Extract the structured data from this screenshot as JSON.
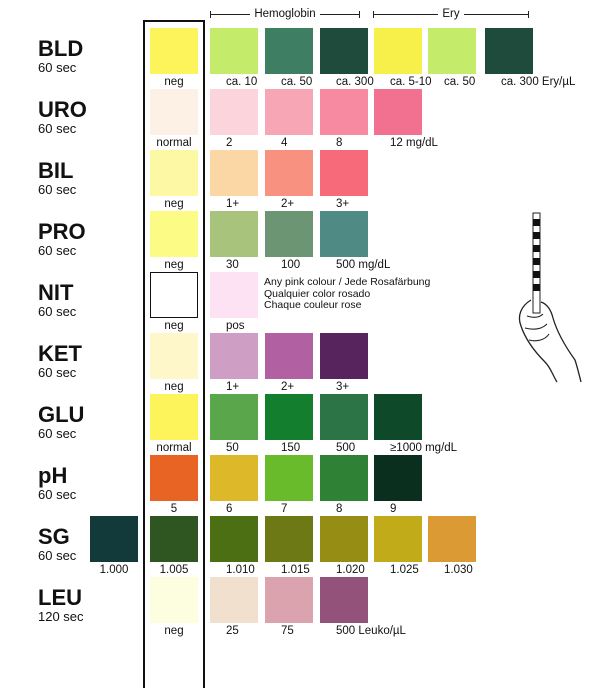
{
  "headers": {
    "hemoglobin": "Hemoglobin",
    "ery": "Ery"
  },
  "tests": [
    {
      "name": "BLD",
      "time": "60 sec",
      "swatches": [
        {
          "color": "#fdf35a",
          "label": "neg",
          "slot": 0
        },
        {
          "color": "#c4ec6a",
          "label": "ca. 10",
          "slot": 1
        },
        {
          "color": "#3e7f63",
          "label": "ca. 50",
          "slot": 2
        },
        {
          "color": "#1f4b3d",
          "label": "ca. 300",
          "slot": 3
        },
        {
          "color": "#f7f04a",
          "label": "ca. 5-10",
          "slot": 4,
          "pattern": "sparse"
        },
        {
          "color": "#c4ec6a",
          "label": "ca. 50",
          "slot": 5,
          "pattern": "dense"
        },
        {
          "color": "#1f4b3d",
          "label": "ca. 300 Ery/µL",
          "slot": 6,
          "pattern": "solid"
        }
      ]
    },
    {
      "name": "URO",
      "time": "60 sec",
      "swatches": [
        {
          "color": "#fdf1e6",
          "label": "normal",
          "slot": 0
        },
        {
          "color": "#fcd5dc",
          "label": "2",
          "slot": 1
        },
        {
          "color": "#f7a6b5",
          "label": "4",
          "slot": 2
        },
        {
          "color": "#f78aa1",
          "label": "8",
          "slot": 3
        },
        {
          "color": "#f27090",
          "label": "12 mg/dL",
          "slot": 4
        }
      ]
    },
    {
      "name": "BIL",
      "time": "60 sec",
      "swatches": [
        {
          "color": "#fdf8a4",
          "label": "neg",
          "slot": 0
        },
        {
          "color": "#fcd7a6",
          "label": "1+",
          "slot": 1
        },
        {
          "color": "#f99180",
          "label": "2+",
          "slot": 2
        },
        {
          "color": "#f76a7a",
          "label": "3+",
          "slot": 3
        }
      ]
    },
    {
      "name": "PRO",
      "time": "60 sec",
      "swatches": [
        {
          "color": "#fbfb86",
          "label": "neg",
          "slot": 0
        },
        {
          "color": "#a8c37b",
          "label": "30",
          "slot": 1
        },
        {
          "color": "#6b9573",
          "label": "100",
          "slot": 2
        },
        {
          "color": "#4f8b84",
          "label": "500 mg/dL",
          "slot": 3
        }
      ]
    },
    {
      "name": "NIT",
      "time": "60 sec",
      "swatches": [
        {
          "color": "#ffffff",
          "label": "neg",
          "slot": 0,
          "outline": true
        },
        {
          "color": "#fde2f4",
          "label": "pos",
          "slot": 1
        }
      ]
    },
    {
      "name": "KET",
      "time": "60 sec",
      "swatches": [
        {
          "color": "#fdf7c9",
          "label": "neg",
          "slot": 0
        },
        {
          "color": "#cf9ec4",
          "label": "1+",
          "slot": 1
        },
        {
          "color": "#b160a2",
          "label": "2+",
          "slot": 2
        },
        {
          "color": "#57245e",
          "label": "3+",
          "slot": 3
        }
      ]
    },
    {
      "name": "GLU",
      "time": "60 sec",
      "swatches": [
        {
          "color": "#fdf35a",
          "label": "normal",
          "slot": 0
        },
        {
          "color": "#5aa64a",
          "label": "50",
          "slot": 1
        },
        {
          "color": "#137e2e",
          "label": "150",
          "slot": 2
        },
        {
          "color": "#2c7346",
          "label": "500",
          "slot": 3
        },
        {
          "color": "#0e4a2a",
          "label": "≥1000 mg/dL",
          "slot": 4
        }
      ]
    },
    {
      "name": "pH",
      "time": "60 sec",
      "swatches": [
        {
          "color": "#e76425",
          "label": "5",
          "slot": 0
        },
        {
          "color": "#ddb92a",
          "label": "6",
          "slot": 1
        },
        {
          "color": "#6abb2b",
          "label": "7",
          "slot": 2
        },
        {
          "color": "#2e8135",
          "label": "8",
          "slot": 3
        },
        {
          "color": "#0b2f1f",
          "label": "9",
          "slot": 4
        }
      ]
    },
    {
      "name": "SG",
      "time": "60 sec",
      "swatches": [
        {
          "color": "#123a3a",
          "label": "1.000",
          "slot": -1
        },
        {
          "color": "#2f5521",
          "label": "1.005",
          "slot": 0
        },
        {
          "color": "#4c6f14",
          "label": "1.010",
          "slot": 1
        },
        {
          "color": "#6c7914",
          "label": "1.015",
          "slot": 2
        },
        {
          "color": "#968d14",
          "label": "1.020",
          "slot": 3
        },
        {
          "color": "#c1ab18",
          "label": "1.025",
          "slot": 4
        },
        {
          "color": "#dc9a35",
          "label": "1.030",
          "slot": 5
        }
      ]
    },
    {
      "name": "LEU",
      "time": "120 sec",
      "swatches": [
        {
          "color": "#fdfddf",
          "label": "neg",
          "slot": 0
        },
        {
          "color": "#f0e0cd",
          "label": "25",
          "slot": 1
        },
        {
          "color": "#dba3ae",
          "label": "75",
          "slot": 2
        },
        {
          "color": "#93527a",
          "label": "500 Leuko/µL",
          "slot": 3
        }
      ]
    }
  ],
  "nit_note": [
    "Any pink colour / Jede Rosafärbung",
    "Qualquier color rosado",
    "Chaque couleur rose"
  ]
}
